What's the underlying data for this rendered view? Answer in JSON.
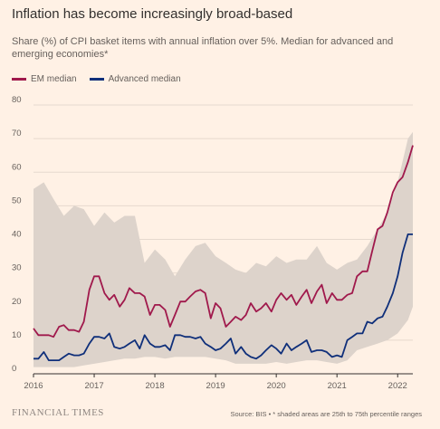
{
  "title": "Inflation has become increasingly broad-based",
  "subtitle": "Share (%) of CPI basket items with annual inflation over 5%. Median for advanced and emerging economies*",
  "legend": [
    {
      "label": "EM median",
      "color": "#a0194c"
    },
    {
      "label": "Advanced median",
      "color": "#0f2f7a"
    }
  ],
  "footer": {
    "logo": "FINANCIAL TIMES",
    "source": "Source: BIS • * shaded areas are 25th to 75th percentile ranges"
  },
  "chart_data": {
    "type": "line",
    "title": "Inflation has become increasingly broad-based",
    "ylim": [
      0,
      80
    ],
    "yticks": [
      0,
      10,
      20,
      30,
      40,
      50,
      60,
      70,
      80
    ],
    "xlim": [
      2016.0,
      2022.25
    ],
    "xticks": [
      2016,
      2017,
      2018,
      2019,
      2020,
      2021,
      2022
    ],
    "grid": true,
    "legend_position": "top-left",
    "band_color": "#ddd3cb",
    "series": [
      {
        "name": "EM median",
        "color": "#a0194c",
        "x": [
          2016.0,
          2016.08,
          2016.17,
          2016.25,
          2016.33,
          2016.42,
          2016.5,
          2016.58,
          2016.67,
          2016.75,
          2016.83,
          2016.92,
          2017.0,
          2017.08,
          2017.17,
          2017.25,
          2017.33,
          2017.42,
          2017.5,
          2017.58,
          2017.67,
          2017.75,
          2017.83,
          2017.92,
          2018.0,
          2018.08,
          2018.17,
          2018.25,
          2018.33,
          2018.42,
          2018.5,
          2018.58,
          2018.67,
          2018.75,
          2018.83,
          2018.92,
          2019.0,
          2019.08,
          2019.17,
          2019.25,
          2019.33,
          2019.42,
          2019.5,
          2019.58,
          2019.67,
          2019.75,
          2019.83,
          2019.92,
          2020.0,
          2020.08,
          2020.17,
          2020.25,
          2020.33,
          2020.42,
          2020.5,
          2020.58,
          2020.67,
          2020.75,
          2020.83,
          2020.92,
          2021.0,
          2021.08,
          2021.17,
          2021.25,
          2021.33,
          2021.42,
          2021.5,
          2021.58,
          2021.67,
          2021.75,
          2021.83,
          2021.92,
          2022.0,
          2022.08,
          2022.17,
          2022.25
        ],
        "values": [
          13.5,
          11.5,
          11.5,
          11.5,
          11,
          14,
          14.5,
          13,
          13,
          12.5,
          15.5,
          25,
          29,
          29,
          24,
          22,
          23.5,
          20,
          22,
          25.5,
          24,
          24,
          23,
          17.5,
          20.5,
          20.5,
          19,
          14,
          17.5,
          21.5,
          21.5,
          23,
          24.5,
          25,
          24,
          16.5,
          21,
          19.5,
          14,
          15.5,
          17,
          16,
          17.5,
          21,
          18.5,
          19.5,
          21,
          18.5,
          22,
          24,
          22,
          23.5,
          20.5,
          23,
          25,
          21,
          24.5,
          26.5,
          21,
          24,
          22,
          22,
          23.5,
          24,
          29,
          30.5,
          30.5,
          36.5,
          43,
          44,
          48,
          54,
          57,
          58.5,
          63,
          68
        ]
      },
      {
        "name": "Advanced median",
        "color": "#0f2f7a",
        "x": [
          2016.0,
          2016.08,
          2016.17,
          2016.25,
          2016.33,
          2016.42,
          2016.5,
          2016.58,
          2016.67,
          2016.75,
          2016.83,
          2016.92,
          2017.0,
          2017.08,
          2017.17,
          2017.25,
          2017.33,
          2017.42,
          2017.5,
          2017.58,
          2017.67,
          2017.75,
          2017.83,
          2017.92,
          2018.0,
          2018.08,
          2018.17,
          2018.25,
          2018.33,
          2018.42,
          2018.5,
          2018.58,
          2018.67,
          2018.75,
          2018.83,
          2018.92,
          2019.0,
          2019.08,
          2019.17,
          2019.25,
          2019.33,
          2019.42,
          2019.5,
          2019.58,
          2019.67,
          2019.75,
          2019.83,
          2019.92,
          2020.0,
          2020.08,
          2020.17,
          2020.25,
          2020.33,
          2020.42,
          2020.5,
          2020.58,
          2020.67,
          2020.75,
          2020.83,
          2020.92,
          2021.0,
          2021.08,
          2021.17,
          2021.25,
          2021.33,
          2021.42,
          2021.5,
          2021.58,
          2021.67,
          2021.75,
          2021.83,
          2021.92,
          2022.0,
          2022.08,
          2022.17,
          2022.25
        ],
        "values": [
          4.5,
          4.5,
          6.5,
          4,
          4,
          4,
          5,
          6,
          5.5,
          5.5,
          6,
          9,
          11,
          11,
          10.5,
          12,
          8,
          7.5,
          8,
          9,
          10,
          7.5,
          11.5,
          9,
          8,
          8,
          8.5,
          7,
          11.5,
          11.5,
          11,
          11,
          10.5,
          11,
          9,
          8,
          7,
          7.5,
          9,
          10.5,
          6,
          8,
          6,
          5,
          4.5,
          5.5,
          7,
          8.5,
          7.5,
          6,
          9,
          7,
          8,
          9,
          10,
          6.5,
          7,
          7,
          6.5,
          5,
          5.5,
          5,
          10,
          11,
          12,
          12,
          15.5,
          15,
          16.5,
          17,
          20,
          24,
          29,
          36,
          41.5,
          41.5
        ]
      }
    ],
    "band": {
      "name": "25th to 75th percentile ranges",
      "x": [
        2016.0,
        2016.17,
        2016.33,
        2016.5,
        2016.67,
        2016.83,
        2017.0,
        2017.17,
        2017.33,
        2017.5,
        2017.67,
        2017.83,
        2018.0,
        2018.17,
        2018.33,
        2018.5,
        2018.67,
        2018.83,
        2019.0,
        2019.17,
        2019.33,
        2019.5,
        2019.67,
        2019.83,
        2020.0,
        2020.17,
        2020.33,
        2020.5,
        2020.67,
        2020.83,
        2021.0,
        2021.17,
        2021.33,
        2021.5,
        2021.67,
        2021.83,
        2022.0,
        2022.17,
        2022.25
      ],
      "low": [
        2,
        2,
        2,
        2,
        2,
        2.5,
        3,
        3.5,
        4,
        4.5,
        4.5,
        5,
        5,
        4.5,
        5,
        5,
        5,
        5,
        4.5,
        4,
        3,
        3,
        3,
        3,
        3.5,
        3,
        3.5,
        4,
        4,
        3.5,
        3,
        4,
        7,
        8,
        9,
        10,
        12,
        16,
        20
      ],
      "high": [
        55,
        57,
        52,
        47,
        50,
        49,
        44,
        48,
        45,
        47,
        47,
        33,
        37,
        34,
        29,
        34,
        38,
        39,
        35,
        33,
        31,
        30,
        33,
        32,
        35,
        33,
        34,
        34,
        38,
        33,
        31,
        33,
        34,
        38,
        43,
        48,
        57,
        70,
        72
      ]
    }
  }
}
